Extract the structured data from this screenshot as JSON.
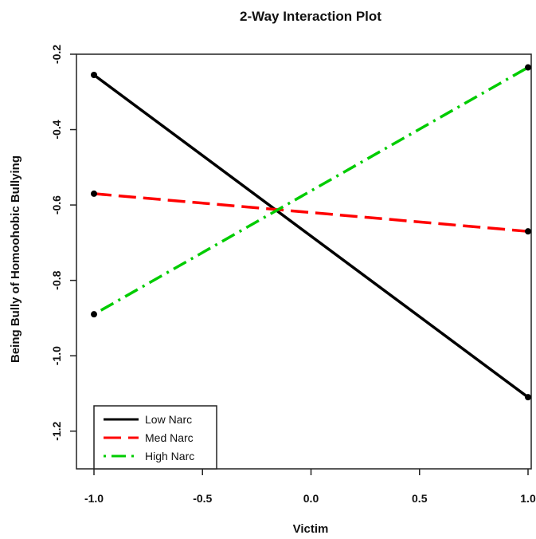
{
  "chart_data": {
    "type": "line",
    "title": "2-Way Interaction Plot",
    "xlabel": "Victim",
    "ylabel": "Being Bully of Homoohobic Bullying",
    "xlim": [
      -1.0,
      1.0
    ],
    "ylim": [
      -1.3,
      -0.2
    ],
    "x_ticks": [
      "-1.0",
      "-0.5",
      "0.0",
      "0.5",
      "1.0"
    ],
    "y_ticks": [
      "-0.2",
      "-0.4",
      "-0.6",
      "-0.8",
      "-1.0",
      "-1.2"
    ],
    "x": [
      -1.0,
      1.0
    ],
    "series": [
      {
        "name": "Low Narc",
        "values": [
          -0.255,
          -1.11
        ],
        "color": "#000000",
        "style": "solid"
      },
      {
        "name": "Med Narc",
        "values": [
          -0.57,
          -0.67
        ],
        "color": "#ff0000",
        "style": "dashed"
      },
      {
        "name": "High Narc",
        "values": [
          -0.89,
          -0.235
        ],
        "color": "#00cc00",
        "style": "dotdash"
      }
    ],
    "legend_position": "bottom-left",
    "grid": false
  }
}
